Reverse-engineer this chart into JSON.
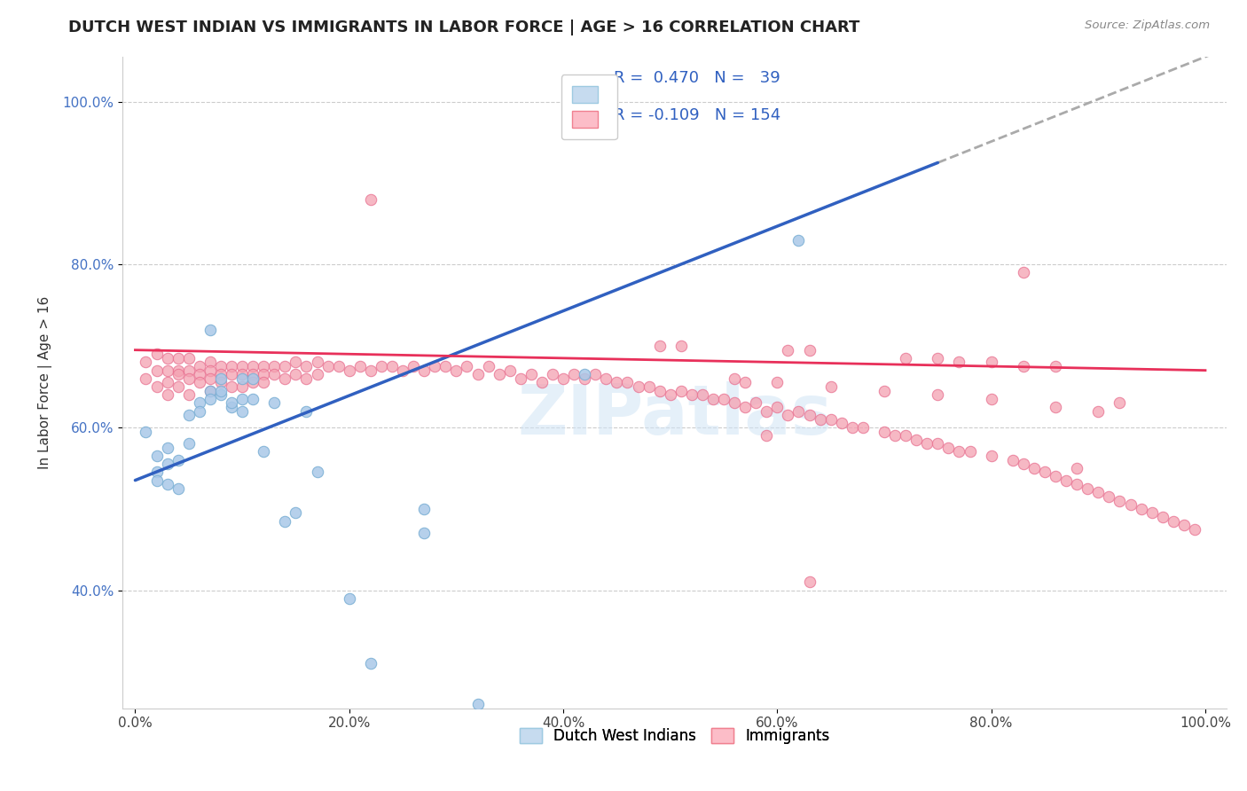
{
  "title": "DUTCH WEST INDIAN VS IMMIGRANTS IN LABOR FORCE | AGE > 16 CORRELATION CHART",
  "source": "Source: ZipAtlas.com",
  "ylabel": "In Labor Force | Age > 16",
  "x_tick_labels": [
    "0.0%",
    "20.0%",
    "40.0%",
    "60.0%",
    "80.0%",
    "100.0%"
  ],
  "x_tick_vals": [
    0.0,
    0.2,
    0.4,
    0.6,
    0.8,
    1.0
  ],
  "y_tick_labels": [
    "40.0%",
    "60.0%",
    "80.0%",
    "100.0%"
  ],
  "y_tick_vals": [
    0.4,
    0.6,
    0.8,
    1.0
  ],
  "watermark": "ZIPatlas",
  "blue_trend_intercept": 0.535,
  "blue_trend_slope": 0.52,
  "pink_trend_intercept": 0.695,
  "pink_trend_slope": -0.025,
  "blue_marker_color": "#aac8e8",
  "blue_edge_color": "#7aafd4",
  "pink_marker_color": "#f4a0b0",
  "pink_edge_color": "#e87090",
  "blue_line_color": "#3060c0",
  "pink_line_color": "#e8305a",
  "grey_dash_color": "#aaaaaa",
  "legend_text_color": "#3060c0",
  "ytick_color": "#4472c4",
  "blue_x": [
    0.01,
    0.02,
    0.02,
    0.02,
    0.03,
    0.03,
    0.03,
    0.04,
    0.04,
    0.05,
    0.05,
    0.06,
    0.06,
    0.07,
    0.07,
    0.07,
    0.08,
    0.08,
    0.08,
    0.09,
    0.09,
    0.1,
    0.1,
    0.1,
    0.11,
    0.11,
    0.12,
    0.13,
    0.14,
    0.15,
    0.16,
    0.17,
    0.2,
    0.22,
    0.27,
    0.27,
    0.32,
    0.42,
    0.62
  ],
  "blue_y": [
    0.595,
    0.545,
    0.565,
    0.535,
    0.555,
    0.53,
    0.575,
    0.56,
    0.525,
    0.615,
    0.58,
    0.63,
    0.62,
    0.645,
    0.635,
    0.72,
    0.64,
    0.645,
    0.66,
    0.625,
    0.63,
    0.66,
    0.635,
    0.62,
    0.635,
    0.66,
    0.57,
    0.63,
    0.485,
    0.495,
    0.62,
    0.545,
    0.39,
    0.31,
    0.47,
    0.5,
    0.26,
    0.665,
    0.83
  ],
  "pink_x": [
    0.01,
    0.01,
    0.02,
    0.02,
    0.02,
    0.03,
    0.03,
    0.03,
    0.03,
    0.04,
    0.04,
    0.04,
    0.04,
    0.05,
    0.05,
    0.05,
    0.05,
    0.06,
    0.06,
    0.06,
    0.07,
    0.07,
    0.07,
    0.07,
    0.08,
    0.08,
    0.08,
    0.09,
    0.09,
    0.09,
    0.1,
    0.1,
    0.1,
    0.11,
    0.11,
    0.11,
    0.12,
    0.12,
    0.12,
    0.13,
    0.13,
    0.14,
    0.14,
    0.15,
    0.15,
    0.16,
    0.16,
    0.17,
    0.17,
    0.18,
    0.19,
    0.2,
    0.21,
    0.22,
    0.23,
    0.24,
    0.25,
    0.26,
    0.27,
    0.28,
    0.29,
    0.3,
    0.31,
    0.32,
    0.33,
    0.34,
    0.35,
    0.36,
    0.37,
    0.38,
    0.39,
    0.4,
    0.41,
    0.42,
    0.43,
    0.44,
    0.45,
    0.46,
    0.47,
    0.48,
    0.49,
    0.5,
    0.51,
    0.52,
    0.53,
    0.54,
    0.55,
    0.56,
    0.57,
    0.58,
    0.59,
    0.6,
    0.61,
    0.62,
    0.63,
    0.64,
    0.65,
    0.66,
    0.67,
    0.68,
    0.7,
    0.71,
    0.72,
    0.73,
    0.74,
    0.75,
    0.76,
    0.77,
    0.78,
    0.8,
    0.82,
    0.83,
    0.84,
    0.85,
    0.86,
    0.87,
    0.88,
    0.89,
    0.9,
    0.91,
    0.92,
    0.93,
    0.94,
    0.95,
    0.96,
    0.97,
    0.98,
    0.99,
    0.49,
    0.51,
    0.61,
    0.63,
    0.72,
    0.75,
    0.77,
    0.8,
    0.83,
    0.86,
    0.56,
    0.57,
    0.6,
    0.65,
    0.7,
    0.75,
    0.8,
    0.86,
    0.9,
    0.22,
    0.59,
    0.63,
    0.83,
    0.88,
    0.92
  ],
  "pink_y": [
    0.68,
    0.66,
    0.69,
    0.67,
    0.65,
    0.685,
    0.67,
    0.655,
    0.64,
    0.685,
    0.67,
    0.665,
    0.65,
    0.685,
    0.67,
    0.66,
    0.64,
    0.675,
    0.665,
    0.655,
    0.68,
    0.67,
    0.66,
    0.645,
    0.675,
    0.665,
    0.655,
    0.675,
    0.665,
    0.65,
    0.675,
    0.665,
    0.65,
    0.675,
    0.665,
    0.655,
    0.675,
    0.665,
    0.655,
    0.675,
    0.665,
    0.675,
    0.66,
    0.68,
    0.665,
    0.675,
    0.66,
    0.68,
    0.665,
    0.675,
    0.675,
    0.67,
    0.675,
    0.67,
    0.675,
    0.675,
    0.67,
    0.675,
    0.67,
    0.675,
    0.675,
    0.67,
    0.675,
    0.665,
    0.675,
    0.665,
    0.67,
    0.66,
    0.665,
    0.655,
    0.665,
    0.66,
    0.665,
    0.66,
    0.665,
    0.66,
    0.655,
    0.655,
    0.65,
    0.65,
    0.645,
    0.64,
    0.645,
    0.64,
    0.64,
    0.635,
    0.635,
    0.63,
    0.625,
    0.63,
    0.62,
    0.625,
    0.615,
    0.62,
    0.615,
    0.61,
    0.61,
    0.605,
    0.6,
    0.6,
    0.595,
    0.59,
    0.59,
    0.585,
    0.58,
    0.58,
    0.575,
    0.57,
    0.57,
    0.565,
    0.56,
    0.555,
    0.55,
    0.545,
    0.54,
    0.535,
    0.53,
    0.525,
    0.52,
    0.515,
    0.51,
    0.505,
    0.5,
    0.495,
    0.49,
    0.485,
    0.48,
    0.475,
    0.7,
    0.7,
    0.695,
    0.695,
    0.685,
    0.685,
    0.68,
    0.68,
    0.675,
    0.675,
    0.66,
    0.655,
    0.655,
    0.65,
    0.645,
    0.64,
    0.635,
    0.625,
    0.62,
    0.88,
    0.59,
    0.41,
    0.79,
    0.55,
    0.63
  ]
}
